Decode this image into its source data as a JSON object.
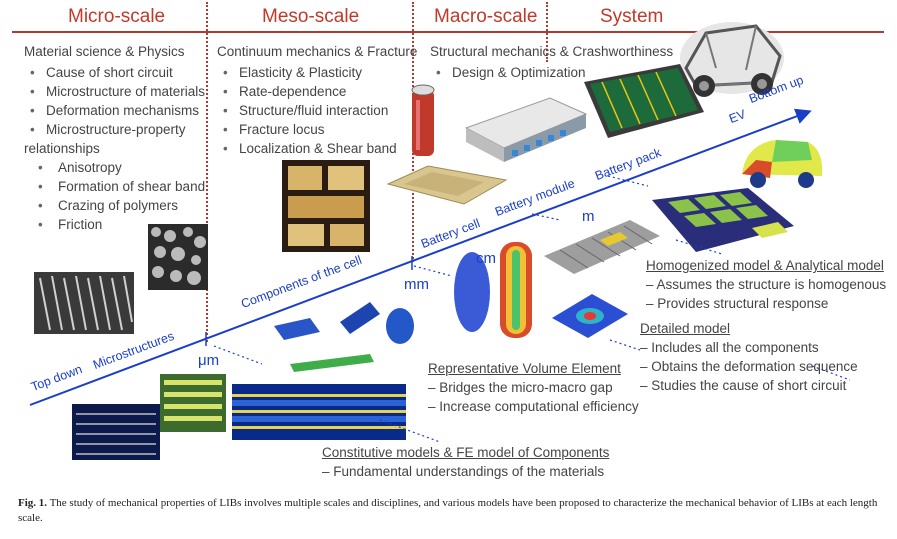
{
  "headers": {
    "micro": "Micro-scale",
    "meso": "Meso-scale",
    "macro": "Macro-scale",
    "system": "System"
  },
  "micro": {
    "title": "Material science & Physics",
    "items": [
      "Cause of short circuit",
      "Microstructure of materials",
      "Deformation mechanisms",
      "Microstructure-property",
      "relationships"
    ],
    "subitems": [
      "Anisotropy",
      "Formation of shear band",
      "Crazing of polymers",
      "Friction"
    ]
  },
  "meso": {
    "title": "Continuum mechanics & Fracture",
    "items": [
      "Elasticity & Plasticity",
      "Rate-dependence",
      "Structure/fluid interaction",
      "Fracture locus",
      "Localization & Shear band"
    ]
  },
  "macro": {
    "title": "Structural mechanics & Crashworthiness",
    "items": [
      "Design & Optimization"
    ]
  },
  "axis": {
    "top_down": "Top down",
    "bottom_up": "Bottom up",
    "microstructures": "Microstructures",
    "components": "Components of the cell",
    "battery_cell": "Battery cell",
    "battery_module": "Battery module",
    "battery_pack": "Battery pack",
    "ev": "EV",
    "um": "μm",
    "mm": "mm",
    "cm": "cm",
    "m": "m"
  },
  "models": {
    "homogenized": {
      "title": "Homogenized model & Analytical model",
      "items": [
        "– Assumes the structure is homogenous",
        "– Provides structural response"
      ]
    },
    "detailed": {
      "title": "Detailed model",
      "items": [
        "– Includes all the components",
        "– Obtains the deformation sequence",
        "– Studies the cause of short circuit"
      ]
    },
    "rve": {
      "title": "Representative Volume Element",
      "items": [
        "– Bridges the micro-macro gap",
        "– Increase computational efficiency"
      ]
    },
    "constitutive": {
      "title": "Constitutive models & FE model of Components",
      "items": [
        "– Fundamental understandings of the materials"
      ]
    }
  },
  "caption": {
    "label": "Fig. 1.",
    "text": " The study of mechanical properties of LIBs involves multiple scales and disciplines, and various models have been proposed to characterize the mechanical behavior of LIBs at each length scale."
  },
  "colors": {
    "header_red": "#c0392b",
    "axis_blue": "#1a3ec8"
  }
}
